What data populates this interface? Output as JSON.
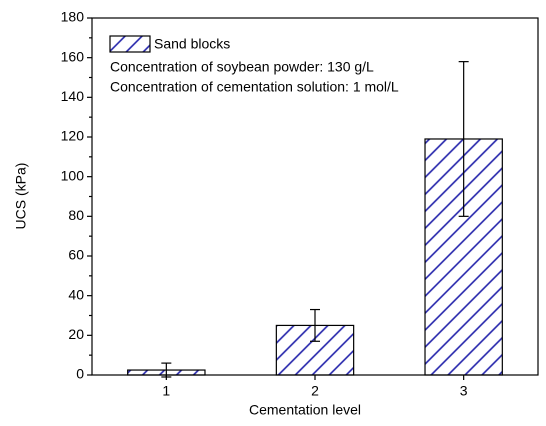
{
  "chart_data": {
    "type": "bar",
    "xlabel": "Cementation level",
    "ylabel": "UCS (kPa)",
    "categories": [
      "1",
      "2",
      "3"
    ],
    "series": [
      {
        "name": "Sand blocks",
        "color": "#2222aa",
        "values": [
          2.5,
          25,
          119
        ],
        "errors": [
          3.5,
          8,
          39
        ]
      }
    ],
    "annotations": [
      "Concentration of soybean powder: 130 g/L",
      "Concentration of cementation solution: 1 mol/L"
    ],
    "ylim": [
      0,
      180
    ],
    "yticks": [
      0,
      20,
      40,
      60,
      80,
      100,
      120,
      140,
      160,
      180
    ],
    "legend": "upper left"
  }
}
